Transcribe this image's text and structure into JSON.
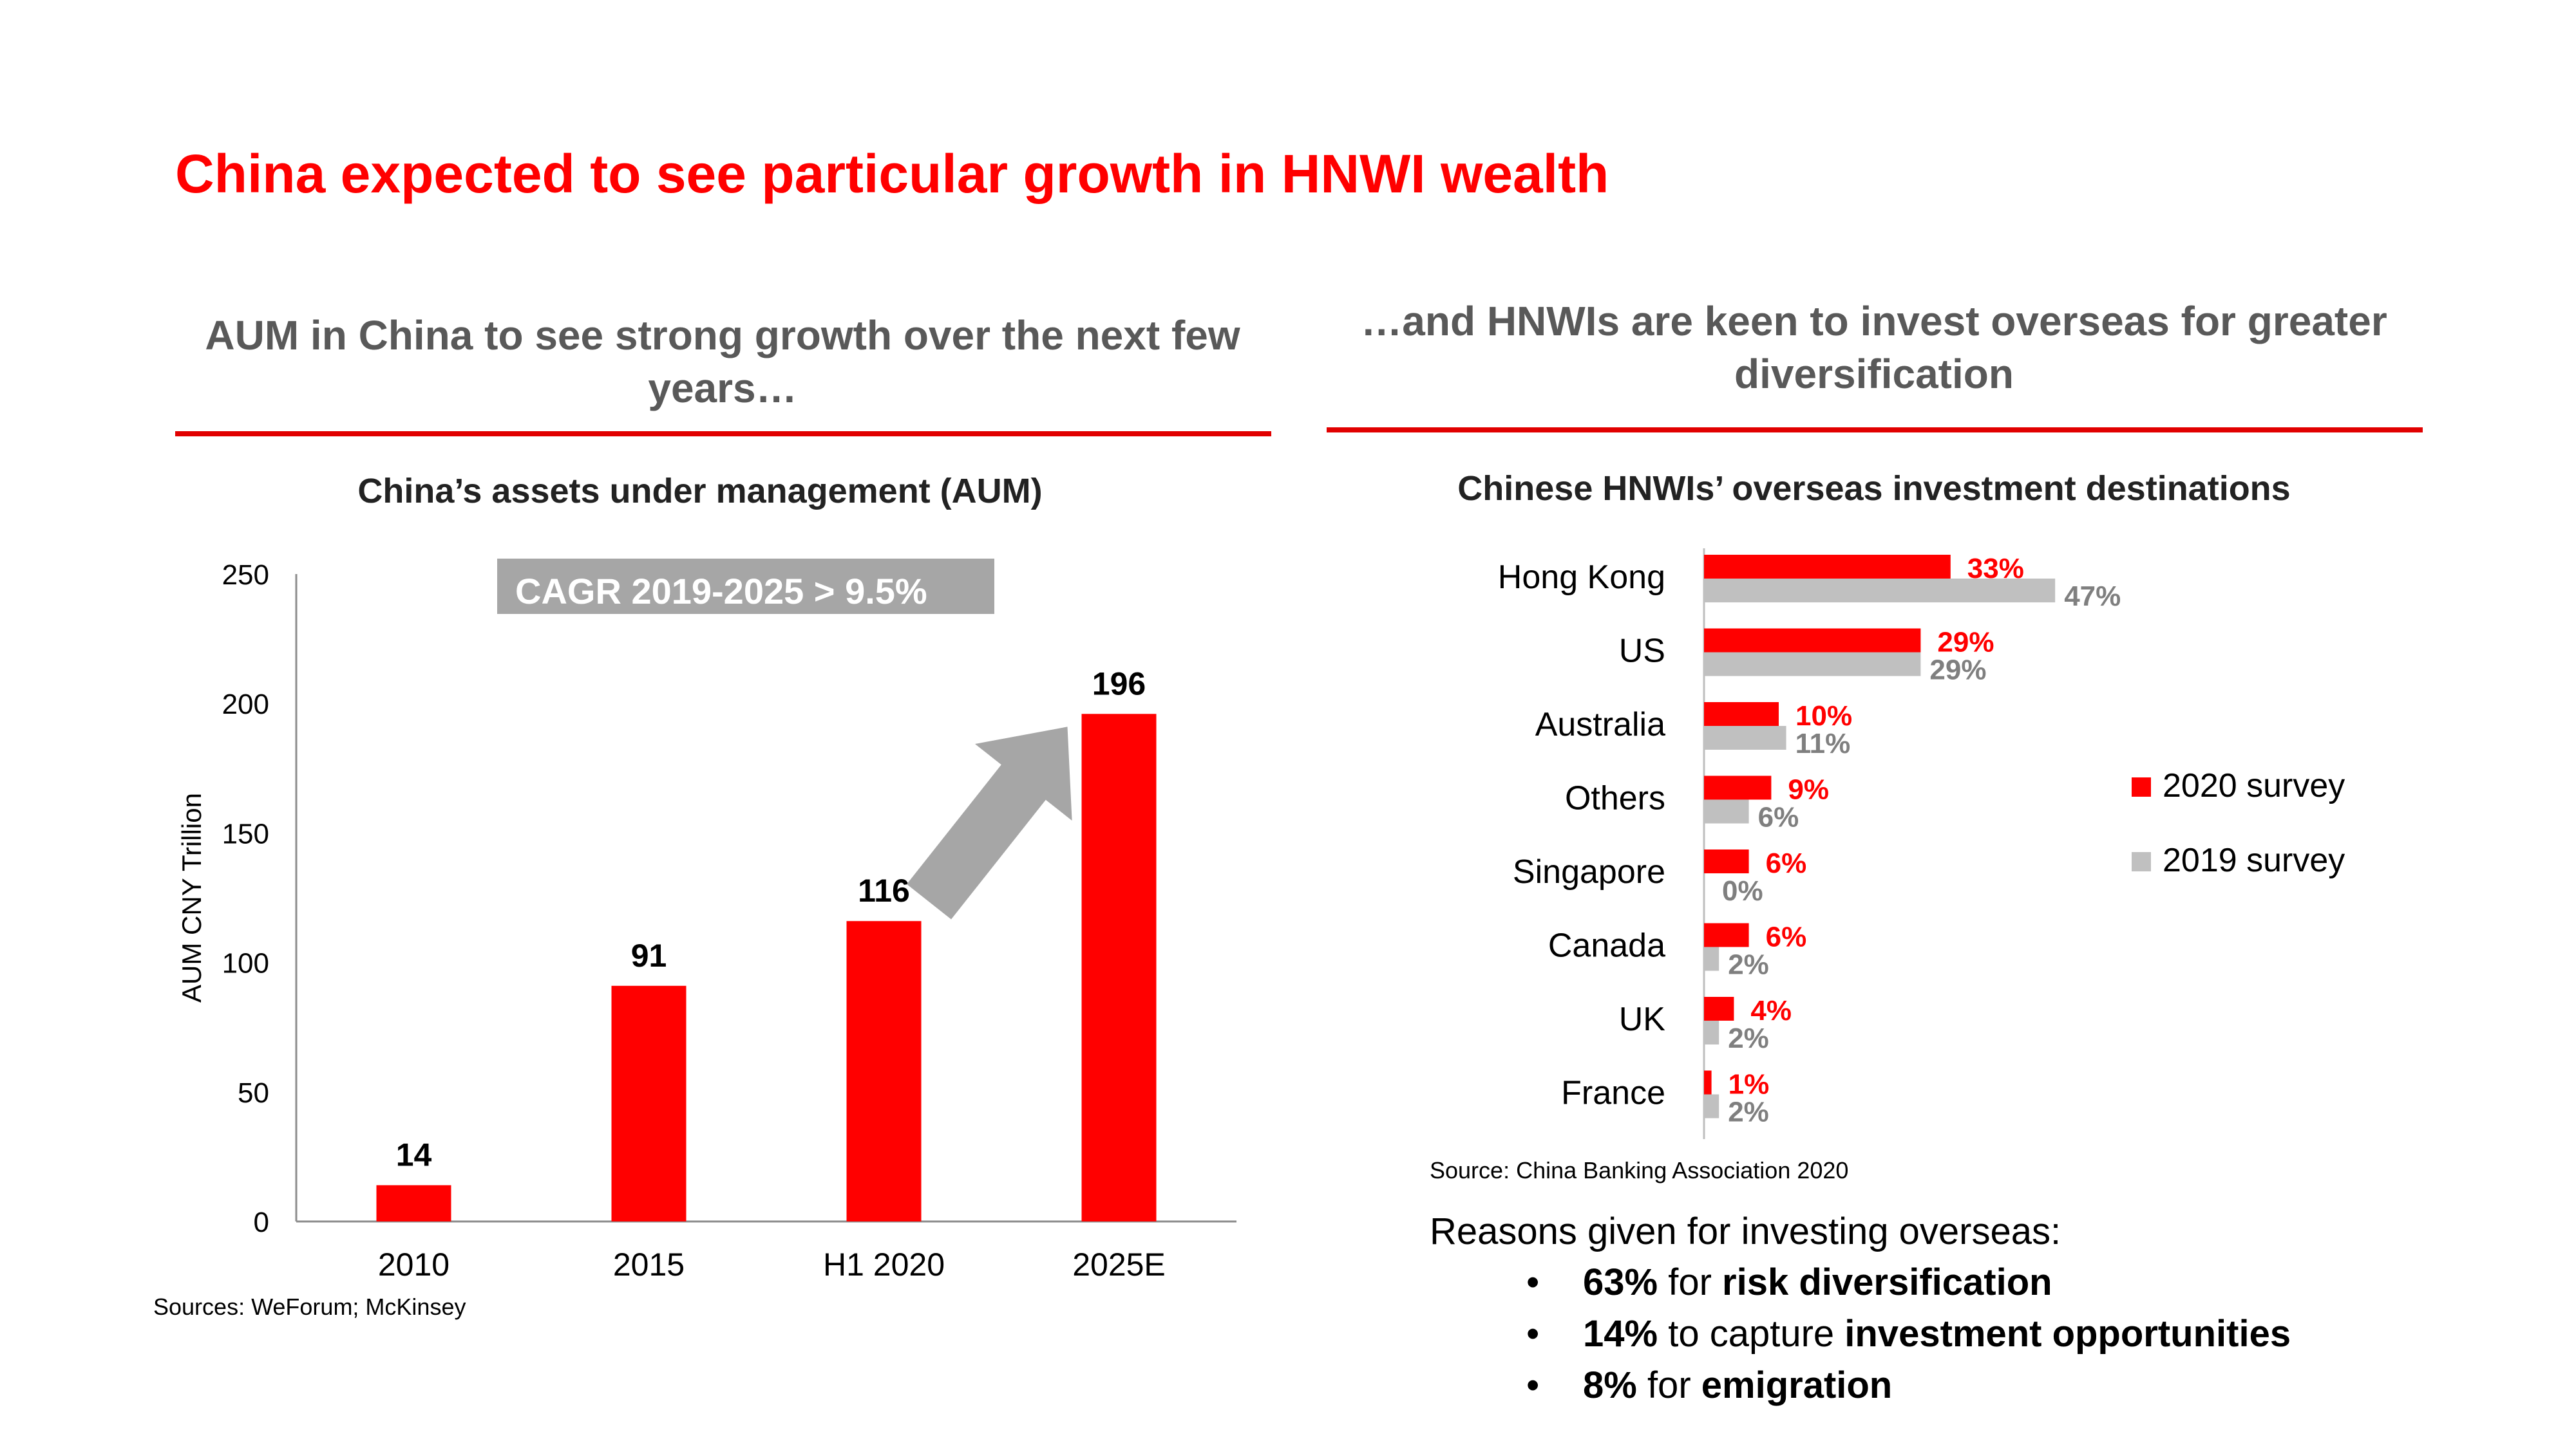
{
  "title": "China expected to see particular growth in HNWI wealth",
  "left": {
    "subtitle": "AUM in China to see strong growth over the next few years…",
    "source": "Sources: WeForum; McKinsey"
  },
  "right": {
    "subtitle": "…and HNWIs are keen to invest overseas for greater diversification",
    "source": "Source: China Banking Association 2020"
  },
  "reasons": {
    "heading": "Reasons given for investing overseas:",
    "bullet": "•",
    "items": [
      {
        "pct": "63%",
        "text": " for ",
        "emph": "risk diversification"
      },
      {
        "pct": "14%",
        "text": " to capture ",
        "emph": "investment opportunities"
      },
      {
        "pct": "8%",
        "text": " for ",
        "emph": "emigration"
      }
    ]
  },
  "colors": {
    "red": "#ff0000",
    "gray": "#c0c0c0",
    "arrow": "#a6a6a6",
    "banner": "#a6a6a6"
  },
  "chart_data": [
    {
      "type": "bar",
      "title": "China’s assets under management (AUM)",
      "ylabel": "AUM CNY Trillion",
      "xlabel": "",
      "categories": [
        "2010",
        "2015",
        "H1 2020",
        "2025E"
      ],
      "values": [
        14,
        91,
        116,
        196
      ],
      "data_labels": [
        "14",
        "91",
        "116",
        "196"
      ],
      "ylim": [
        0,
        250
      ],
      "yticks": [
        0,
        50,
        100,
        150,
        200,
        250
      ],
      "color": "#ff0000",
      "annotation": "CAGR 2019-2025 > 9.5%",
      "arrow": "from H1 2020 to 2025E",
      "grid": false,
      "legend": "none"
    },
    {
      "type": "bar",
      "orientation": "horizontal",
      "title": "Chinese HNWIs’ overseas investment destinations",
      "categories": [
        "Hong Kong",
        "US",
        "Australia",
        "Others",
        "Singapore",
        "Canada",
        "UK",
        "France"
      ],
      "series": [
        {
          "name": "2020 survey",
          "values": [
            33,
            29,
            10,
            9,
            6,
            6,
            4,
            1
          ],
          "labels": [
            "33%",
            "29%",
            "10%",
            "9%",
            "6%",
            "6%",
            "4%",
            "1%"
          ],
          "color": "#ff0000"
        },
        {
          "name": "2019 survey",
          "values": [
            47,
            29,
            11,
            6,
            0,
            2,
            2,
            2
          ],
          "labels": [
            "47%",
            "29%",
            "11%",
            "6%",
            "0%",
            "2%",
            "2%",
            "2%"
          ],
          "color": "#c0c0c0"
        }
      ],
      "xlim": [
        0,
        50
      ],
      "grid": false,
      "legend": "right"
    }
  ]
}
